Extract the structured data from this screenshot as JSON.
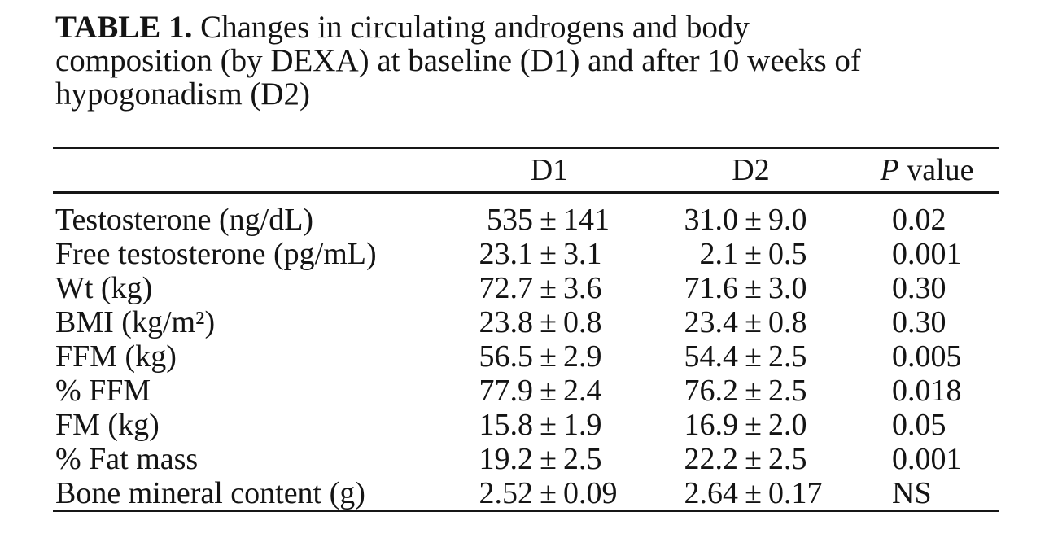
{
  "title": {
    "label": "TABLE 1.",
    "lines": [
      "Changes in circulating androgens and body",
      "composition (by DEXA) at baseline (D1) and after 10 weeks of",
      "hypogonadism (D2)"
    ]
  },
  "table": {
    "plus_minus": "±",
    "headers": {
      "d1": "D1",
      "d2": "D2",
      "p_symbol": "P",
      "p_rest": "value"
    },
    "rows": [
      {
        "label": "Testosterone (ng/dL)",
        "d1_mean": "535",
        "d1_sd": "141",
        "d2_mean": "31.0",
        "d2_sd": "9.0",
        "p": "0.02"
      },
      {
        "label": "Free testosterone (pg/mL)",
        "d1_mean": "23.1",
        "d1_sd": "3.1",
        "d2_mean": "2.1",
        "d2_sd": "0.5",
        "p": "0.001"
      },
      {
        "label": "Wt (kg)",
        "d1_mean": "72.7",
        "d1_sd": "3.6",
        "d2_mean": "71.6",
        "d2_sd": "3.0",
        "p": "0.30"
      },
      {
        "label": "BMI (kg/m²)",
        "d1_mean": "23.8",
        "d1_sd": "0.8",
        "d2_mean": "23.4",
        "d2_sd": "0.8",
        "p": "0.30"
      },
      {
        "label": "FFM (kg)",
        "d1_mean": "56.5",
        "d1_sd": "2.9",
        "d2_mean": "54.4",
        "d2_sd": "2.5",
        "p": "0.005"
      },
      {
        "label": "% FFM",
        "d1_mean": "77.9",
        "d1_sd": "2.4",
        "d2_mean": "76.2",
        "d2_sd": "2.5",
        "p": "0.018"
      },
      {
        "label": "FM (kg)",
        "d1_mean": "15.8",
        "d1_sd": "1.9",
        "d2_mean": "16.9",
        "d2_sd": "2.0",
        "p": "0.05"
      },
      {
        "label": "% Fat mass",
        "d1_mean": "19.2",
        "d1_sd": "2.5",
        "d2_mean": "22.2",
        "d2_sd": "2.5",
        "p": "0.001"
      },
      {
        "label": "Bone mineral content (g)",
        "d1_mean": "2.52",
        "d1_sd": "0.09",
        "d2_mean": "2.64",
        "d2_sd": "0.17",
        "p": "NS"
      }
    ]
  }
}
